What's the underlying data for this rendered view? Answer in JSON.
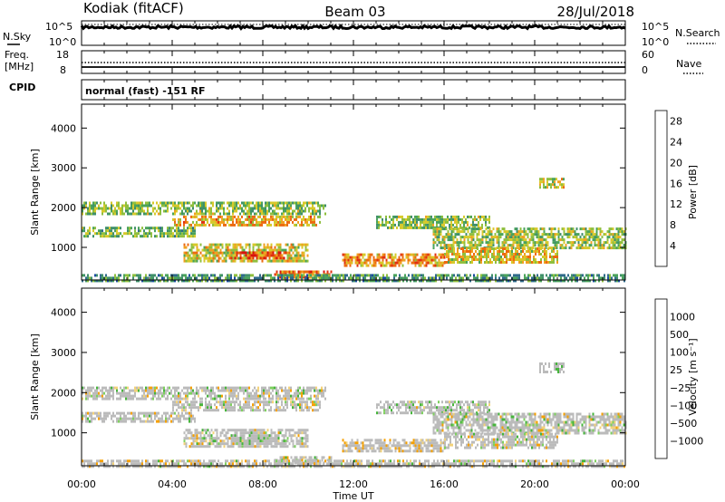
{
  "header": {
    "station": "Kodiak (fitACF)",
    "beam": "Beam 03",
    "date": "28/Jul/2018"
  },
  "noise_panel": {
    "left_label": "N.Sky",
    "right_label": "N.Search",
    "left_ticks": [
      "10^5",
      "10^0"
    ],
    "right_ticks": [
      "10^5",
      "10^0"
    ]
  },
  "freq_panel": {
    "left_label_1": "Freq.",
    "left_label_2": "[MHz]",
    "right_label": "Nave",
    "left_ticks": [
      "18",
      "8"
    ],
    "right_ticks": [
      "60",
      "0"
    ]
  },
  "cpid_panel": {
    "label": "CPID",
    "text": "normal (fast) -151 RF"
  },
  "chart_data": [
    {
      "type": "heatmap",
      "title": "",
      "quantity": "Power",
      "ylabel": "Slant Range [km]",
      "ylim": [
        180,
        4600
      ],
      "yticks": [
        "4000",
        "3000",
        "2000",
        "1000"
      ],
      "xlim": [
        0,
        24
      ],
      "colorbar_label": "Power [dB]",
      "colorbar_ticks": [
        "28",
        "24",
        "20",
        "16",
        "12",
        "8",
        "4"
      ],
      "colorbar_range": [
        0,
        30
      ],
      "colorscale": [
        "#1f25f2",
        "#1a4aa0",
        "#2f6a8a",
        "#3f8f6a",
        "#4aa35a",
        "#8fbf3e",
        "#d7c92a",
        "#f0a020",
        "#ec6a10",
        "#e03010",
        "#d8120c"
      ],
      "echo_regions": [
        {
          "t": [
            0,
            10.8
          ],
          "r": [
            1850,
            2150
          ],
          "p": 14
        },
        {
          "t": [
            4,
            10.5
          ],
          "r": [
            1550,
            1800
          ],
          "p": 20
        },
        {
          "t": [
            0,
            5
          ],
          "r": [
            1280,
            1520
          ],
          "p": 13
        },
        {
          "t": [
            4.5,
            10
          ],
          "r": [
            650,
            1100
          ],
          "p": 18
        },
        {
          "t": [
            6.5,
            9
          ],
          "r": [
            700,
            900
          ],
          "p": 25
        },
        {
          "t": [
            8.5,
            11
          ],
          "r": [
            250,
            420
          ],
          "p": 24
        },
        {
          "t": [
            11.5,
            16
          ],
          "r": [
            550,
            850
          ],
          "p": 22
        },
        {
          "t": [
            13,
            18
          ],
          "r": [
            1500,
            1800
          ],
          "p": 14
        },
        {
          "t": [
            15.5,
            24
          ],
          "r": [
            1000,
            1500
          ],
          "p": 15
        },
        {
          "t": [
            16,
            21
          ],
          "r": [
            650,
            1000
          ],
          "p": 19
        },
        {
          "t": [
            20.2,
            21.3
          ],
          "r": [
            2500,
            2750
          ],
          "p": 18
        },
        {
          "t": [
            0,
            24
          ],
          "r": [
            180,
            330
          ],
          "p": 10
        }
      ]
    },
    {
      "type": "heatmap",
      "title": "",
      "quantity": "Velocity",
      "ylabel": "Slant Range [km]",
      "xlabel": "Time UT",
      "ylim": [
        180,
        4600
      ],
      "yticks": [
        "4000",
        "3000",
        "2000",
        "1000"
      ],
      "xlim": [
        0,
        24
      ],
      "xticks": [
        "00:00",
        "04:00",
        "08:00",
        "12:00",
        "16:00",
        "20:00",
        "00:00"
      ],
      "colorbar_label": "Velocity [m s⁻¹]",
      "colorbar_ticks": [
        "1000",
        "500",
        "100",
        "25",
        "−25",
        "−100",
        "−500",
        "−1000"
      ],
      "colorscale": [
        "#2a3db8",
        "#2e7a86",
        "#46b43c",
        "#7fd060",
        "#bbbbbb",
        "#f2d27a",
        "#f5a000",
        "#f06a00",
        "#ee1b0a"
      ],
      "echo_regions": [
        {
          "t": [
            0,
            10.8
          ],
          "r": [
            1850,
            2150
          ],
          "v": 0
        },
        {
          "t": [
            4,
            10.5
          ],
          "r": [
            1550,
            1800
          ],
          "v": 0
        },
        {
          "t": [
            0,
            5
          ],
          "r": [
            1280,
            1520
          ],
          "v": 0
        },
        {
          "t": [
            4.5,
            10
          ],
          "r": [
            650,
            1100
          ],
          "v": 0
        },
        {
          "t": [
            6.5,
            9
          ],
          "r": [
            700,
            900
          ],
          "v": 150
        },
        {
          "t": [
            8.5,
            11
          ],
          "r": [
            250,
            420
          ],
          "v": 0
        },
        {
          "t": [
            11.5,
            16
          ],
          "r": [
            550,
            850
          ],
          "v": -200
        },
        {
          "t": [
            13,
            18
          ],
          "r": [
            1500,
            1800
          ],
          "v": 50
        },
        {
          "t": [
            15.5,
            24
          ],
          "r": [
            1000,
            1500
          ],
          "v": 0
        },
        {
          "t": [
            16,
            21
          ],
          "r": [
            650,
            1000
          ],
          "v": 0
        },
        {
          "t": [
            20.2,
            21.3
          ],
          "r": [
            2500,
            2750
          ],
          "v": 300
        },
        {
          "t": [
            0,
            24
          ],
          "r": [
            180,
            330
          ],
          "v": -50
        }
      ]
    }
  ]
}
